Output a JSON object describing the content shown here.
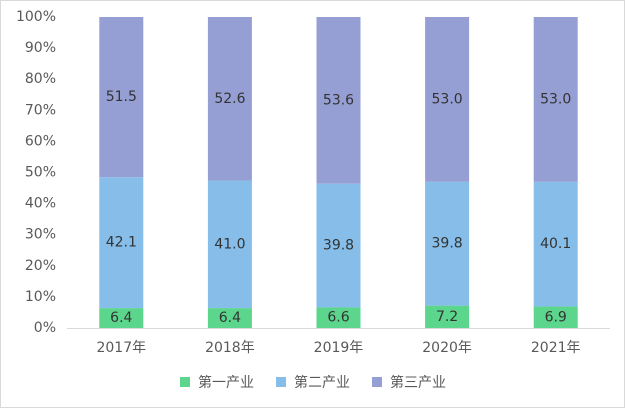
{
  "chart_data": {
    "type": "stacked_bar",
    "categories": [
      "2017年",
      "2018年",
      "2019年",
      "2020年",
      "2021年"
    ],
    "series": [
      {
        "name": "第一产业",
        "color": "#5cd68c",
        "values": [
          6.4,
          6.4,
          6.6,
          7.2,
          6.9
        ],
        "value_labels": [
          "6.4",
          "6.4",
          "6.6",
          "7.2",
          "6.9"
        ]
      },
      {
        "name": "第二产业",
        "color": "#86bee9",
        "values": [
          42.1,
          41.0,
          39.8,
          39.8,
          40.1
        ],
        "value_labels": [
          "42.1",
          "41.0",
          "39.8",
          "39.8",
          "40.1"
        ]
      },
      {
        "name": "第三产业",
        "color": "#969fd4",
        "values": [
          51.5,
          52.6,
          53.6,
          53.0,
          53.0
        ],
        "value_labels": [
          "51.5",
          "52.6",
          "53.6",
          "53.0",
          "53.0"
        ]
      }
    ],
    "ylim": [
      0,
      100
    ],
    "yticks": [
      {
        "value": 0,
        "label": "0%"
      },
      {
        "value": 10,
        "label": "10%"
      },
      {
        "value": 20,
        "label": "20%"
      },
      {
        "value": 30,
        "label": "30%"
      },
      {
        "value": 40,
        "label": "40%"
      },
      {
        "value": 50,
        "label": "50%"
      },
      {
        "value": 60,
        "label": "60%"
      },
      {
        "value": 70,
        "label": "70%"
      },
      {
        "value": 80,
        "label": "80%"
      },
      {
        "value": 90,
        "label": "90%"
      },
      {
        "value": 100,
        "label": "100%"
      }
    ],
    "legend": "bottom"
  }
}
